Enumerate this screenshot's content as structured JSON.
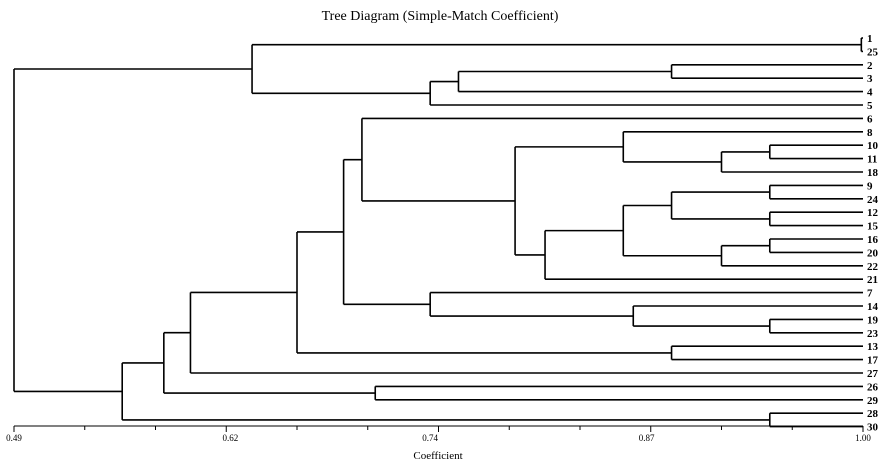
{
  "chart_data": {
    "type": "dendrogram",
    "title": "Tree Diagram (Simple-Match Coefficient)",
    "xlabel": "Coefficient",
    "xlim": [
      0.49,
      1.0
    ],
    "ticks": [
      "0.49",
      "0.62",
      "0.74",
      "0.87",
      "1.00"
    ],
    "tick_values": [
      0.49,
      0.62,
      0.74,
      0.87,
      1.0
    ],
    "leaves": [
      "1",
      "25",
      "2",
      "3",
      "4",
      "5",
      "6",
      "8",
      "10",
      "11",
      "18",
      "9",
      "24",
      "12",
      "15",
      "16",
      "20",
      "22",
      "21",
      "7",
      "14",
      "19",
      "23",
      "13",
      "17",
      "27",
      "26",
      "29",
      "28",
      "30"
    ],
    "merges": [
      {
        "a": "1",
        "b": "25",
        "similarity": 0.999,
        "id": "n1"
      },
      {
        "a": "2",
        "b": "3",
        "similarity": 0.885,
        "id": "n2"
      },
      {
        "a": "n2",
        "b": "4",
        "similarity": 0.757,
        "id": "n3"
      },
      {
        "a": "n3",
        "b": "5",
        "similarity": 0.74,
        "id": "n4"
      },
      {
        "a": "n1",
        "b": "n4",
        "similarity": 0.633,
        "id": "n5"
      },
      {
        "a": "10",
        "b": "11",
        "similarity": 0.944,
        "id": "n6"
      },
      {
        "a": "n6",
        "b": "18",
        "similarity": 0.915,
        "id": "n7"
      },
      {
        "a": "8",
        "b": "n7",
        "similarity": 0.856,
        "id": "n8"
      },
      {
        "a": "9",
        "b": "24",
        "similarity": 0.944,
        "id": "n9"
      },
      {
        "a": "12",
        "b": "15",
        "similarity": 0.944,
        "id": "n10"
      },
      {
        "a": "n9",
        "b": "n10",
        "similarity": 0.885,
        "id": "n11"
      },
      {
        "a": "16",
        "b": "20",
        "similarity": 0.944,
        "id": "n12"
      },
      {
        "a": "n12",
        "b": "22",
        "similarity": 0.915,
        "id": "n13"
      },
      {
        "a": "n11",
        "b": "n13",
        "similarity": 0.856,
        "id": "n14"
      },
      {
        "a": "n14",
        "b": "21",
        "similarity": 0.809,
        "id": "n15"
      },
      {
        "a": "n8",
        "b": "n15",
        "similarity": 0.791,
        "id": "n16"
      },
      {
        "a": "6",
        "b": "n16",
        "similarity": 0.699,
        "id": "n17"
      },
      {
        "a": "19",
        "b": "23",
        "similarity": 0.944,
        "id": "n18"
      },
      {
        "a": "14",
        "b": "n18",
        "similarity": 0.862,
        "id": "n19"
      },
      {
        "a": "7",
        "b": "n19",
        "similarity": 0.74,
        "id": "n20"
      },
      {
        "a": "n17",
        "b": "n20",
        "similarity": 0.688,
        "id": "n21"
      },
      {
        "a": "13",
        "b": "17",
        "similarity": 0.885,
        "id": "n22"
      },
      {
        "a": "n21",
        "b": "n22",
        "similarity": 0.66,
        "id": "n23"
      },
      {
        "a": "n23",
        "b": "27",
        "similarity": 0.596,
        "id": "n24"
      },
      {
        "a": "26",
        "b": "29",
        "similarity": 0.707,
        "id": "n25"
      },
      {
        "a": "n24",
        "b": "n25",
        "similarity": 0.58,
        "id": "n26"
      },
      {
        "a": "28",
        "b": "30",
        "similarity": 0.944,
        "id": "n27"
      },
      {
        "a": "n26",
        "b": "n27",
        "similarity": 0.555,
        "id": "n28"
      },
      {
        "a": "n5",
        "b": "n28",
        "similarity": 0.49,
        "id": "n29"
      }
    ]
  }
}
